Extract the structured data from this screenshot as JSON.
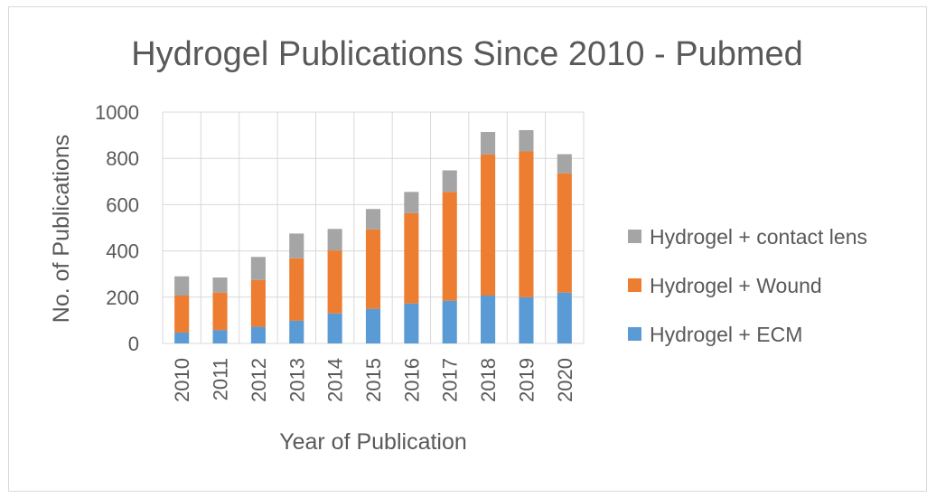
{
  "chart_data": {
    "type": "bar",
    "stacked": true,
    "title": "Hydrogel Publications Since 2010 - Pubmed",
    "xlabel": "Year of Publication",
    "ylabel": "No. of Publications",
    "ylim": [
      0,
      1000
    ],
    "yticks": [
      0,
      200,
      400,
      600,
      800,
      1000
    ],
    "grid": true,
    "legend_position": "right",
    "categories": [
      "2010",
      "2011",
      "2012",
      "2013",
      "2014",
      "2015",
      "2016",
      "2017",
      "2018",
      "2019",
      "2020"
    ],
    "series": [
      {
        "name": "Hydrogel + ECM",
        "color": "#5b9bd5",
        "values": [
          47,
          58,
          72,
          98,
          130,
          150,
          173,
          185,
          207,
          200,
          220
        ]
      },
      {
        "name": "Hydrogel + Wound",
        "color": "#ed7d31",
        "values": [
          160,
          162,
          202,
          270,
          272,
          343,
          390,
          470,
          610,
          630,
          515
        ]
      },
      {
        "name": "Hydrogel + contact lens",
        "color": "#a5a5a5",
        "values": [
          83,
          65,
          100,
          107,
          93,
          88,
          92,
          93,
          97,
          92,
          83
        ]
      }
    ]
  }
}
